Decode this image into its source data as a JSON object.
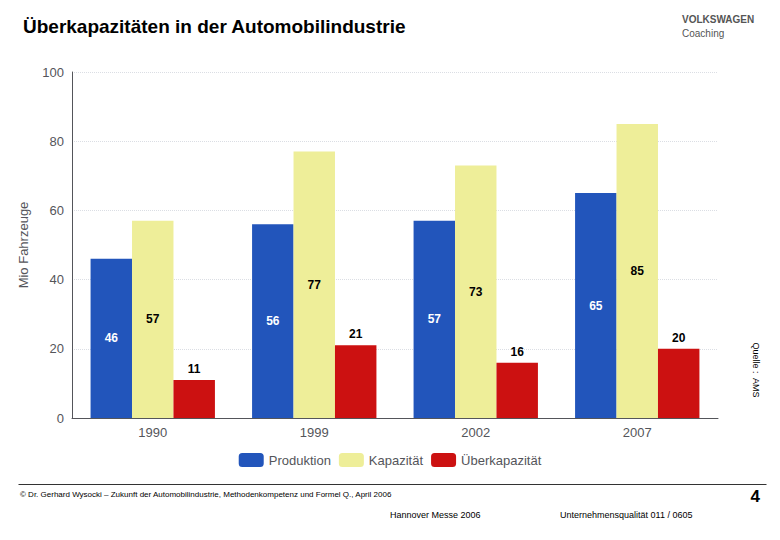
{
  "chart_data": {
    "type": "bar",
    "title": "Überkapazitäten in der Automobilindustrie",
    "ylabel": "Mio Fahrzeuge",
    "categories": [
      "1990",
      "1999",
      "2002",
      "2007"
    ],
    "series": [
      {
        "name": "Produktion",
        "color": "#2255BB",
        "values": [
          46,
          56,
          57,
          65
        ]
      },
      {
        "name": "Kapazität",
        "color": "#EEEE99",
        "values": [
          57,
          77,
          73,
          85
        ]
      },
      {
        "name": "Überkapazität",
        "color": "#CC1111",
        "values": [
          11,
          21,
          16,
          20
        ]
      }
    ],
    "ylim": [
      0,
      100
    ],
    "yticks": [
      0,
      20,
      40,
      60,
      80,
      100
    ],
    "grid": true,
    "legend": "bottom",
    "data_labels": true,
    "annotations": [
      "VOLKSWAGEN",
      "Coaching",
      "Quelle :  AMS",
      "© Dr. Gerhard Wysocki – Zukunft der Automobilindustrie, Methodenkompetenz und Formel Q., April 2006",
      "Hannover Messe 2006",
      "Unternehmensqualität 011 / 0605",
      "4"
    ]
  }
}
